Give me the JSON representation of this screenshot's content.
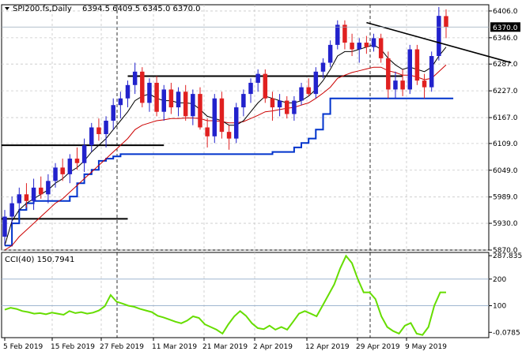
{
  "header": {
    "symbol": "SPI200.fs,Daily",
    "ohlc": "6394.5 6409.5 6345.0 6370.0",
    "arrow_icon": "triangle-down-icon"
  },
  "price_tag": "6370.0",
  "cci_header": "CCI(40) 150.7941",
  "chart_data": [
    {
      "type": "candlestick",
      "title": "SPI200.fs,Daily",
      "price_axis_ticks": [
        "6406.0",
        "6346.0",
        "6287.0",
        "6227.0",
        "6167.0",
        "6109.0",
        "6049.0",
        "5989.0",
        "5930.0",
        "5870.0"
      ],
      "date_axis_ticks": [
        "5 Feb 2019",
        "15 Feb 2019",
        "27 Feb 2019",
        "11 Mar 2019",
        "21 Mar 2019",
        "2 Apr 2019",
        "12 Apr 2019",
        "29 Apr 2019",
        "9 May 2019"
      ],
      "ylim": [
        5870,
        6420
      ],
      "grid": true,
      "last_price": 6370.0,
      "colors": {
        "up": "#2222cc",
        "down": "#e02020",
        "ema_fast": "#000000",
        "ema_slow": "#cc0000",
        "support": "#0033cc"
      },
      "candles": [
        {
          "o": 5900,
          "h": 5960,
          "l": 5880,
          "c": 5945
        },
        {
          "o": 5945,
          "h": 5990,
          "l": 5925,
          "c": 5975
        },
        {
          "o": 5975,
          "h": 6010,
          "l": 5955,
          "c": 5995
        },
        {
          "o": 5995,
          "h": 6020,
          "l": 5965,
          "c": 5980
        },
        {
          "o": 5980,
          "h": 6030,
          "l": 5960,
          "c": 6010
        },
        {
          "o": 6010,
          "h": 6035,
          "l": 5985,
          "c": 5995
        },
        {
          "o": 5995,
          "h": 6040,
          "l": 5975,
          "c": 6025
        },
        {
          "o": 6025,
          "h": 6065,
          "l": 6010,
          "c": 6055
        },
        {
          "o": 6055,
          "h": 6075,
          "l": 6025,
          "c": 6040
        },
        {
          "o": 6040,
          "h": 6085,
          "l": 6020,
          "c": 6075
        },
        {
          "o": 6075,
          "h": 6100,
          "l": 6050,
          "c": 6065
        },
        {
          "o": 6065,
          "h": 6120,
          "l": 6045,
          "c": 6105
        },
        {
          "o": 6105,
          "h": 6155,
          "l": 6090,
          "c": 6145
        },
        {
          "o": 6145,
          "h": 6165,
          "l": 6115,
          "c": 6130
        },
        {
          "o": 6130,
          "h": 6170,
          "l": 6100,
          "c": 6160
        },
        {
          "o": 6160,
          "h": 6210,
          "l": 6140,
          "c": 6195
        },
        {
          "o": 6195,
          "h": 6225,
          "l": 6165,
          "c": 6210
        },
        {
          "o": 6210,
          "h": 6250,
          "l": 6190,
          "c": 6240
        },
        {
          "o": 6240,
          "h": 6290,
          "l": 6220,
          "c": 6270
        },
        {
          "o": 6270,
          "h": 6280,
          "l": 6190,
          "c": 6200
        },
        {
          "o": 6200,
          "h": 6255,
          "l": 6180,
          "c": 6245
        },
        {
          "o": 6245,
          "h": 6260,
          "l": 6170,
          "c": 6180
        },
        {
          "o": 6180,
          "h": 6240,
          "l": 6160,
          "c": 6230
        },
        {
          "o": 6230,
          "h": 6245,
          "l": 6175,
          "c": 6190
        },
        {
          "o": 6190,
          "h": 6235,
          "l": 6170,
          "c": 6225
        },
        {
          "o": 6225,
          "h": 6240,
          "l": 6160,
          "c": 6170
        },
        {
          "o": 6170,
          "h": 6230,
          "l": 6150,
          "c": 6220
        },
        {
          "o": 6220,
          "h": 6235,
          "l": 6140,
          "c": 6145
        },
        {
          "o": 6145,
          "h": 6165,
          "l": 6100,
          "c": 6125
        },
        {
          "o": 6125,
          "h": 6220,
          "l": 6110,
          "c": 6210
        },
        {
          "o": 6210,
          "h": 6225,
          "l": 6120,
          "c": 6135
        },
        {
          "o": 6135,
          "h": 6150,
          "l": 6095,
          "c": 6120
        },
        {
          "o": 6120,
          "h": 6200,
          "l": 6110,
          "c": 6190
        },
        {
          "o": 6190,
          "h": 6230,
          "l": 6170,
          "c": 6220
        },
        {
          "o": 6220,
          "h": 6255,
          "l": 6200,
          "c": 6245
        },
        {
          "o": 6245,
          "h": 6275,
          "l": 6225,
          "c": 6265
        },
        {
          "o": 6265,
          "h": 6275,
          "l": 6200,
          "c": 6210
        },
        {
          "o": 6210,
          "h": 6225,
          "l": 6160,
          "c": 6190
        },
        {
          "o": 6190,
          "h": 6220,
          "l": 6170,
          "c": 6205
        },
        {
          "o": 6205,
          "h": 6215,
          "l": 6165,
          "c": 6175
        },
        {
          "o": 6175,
          "h": 6215,
          "l": 6160,
          "c": 6205
        },
        {
          "o": 6205,
          "h": 6245,
          "l": 6195,
          "c": 6235
        },
        {
          "o": 6235,
          "h": 6255,
          "l": 6215,
          "c": 6220
        },
        {
          "o": 6220,
          "h": 6280,
          "l": 6210,
          "c": 6270
        },
        {
          "o": 6270,
          "h": 6300,
          "l": 6255,
          "c": 6290
        },
        {
          "o": 6290,
          "h": 6340,
          "l": 6280,
          "c": 6330
        },
        {
          "o": 6330,
          "h": 6385,
          "l": 6320,
          "c": 6375
        },
        {
          "o": 6375,
          "h": 6385,
          "l": 6320,
          "c": 6335
        },
        {
          "o": 6335,
          "h": 6355,
          "l": 6305,
          "c": 6320
        },
        {
          "o": 6320,
          "h": 6345,
          "l": 6290,
          "c": 6335
        },
        {
          "o": 6335,
          "h": 6350,
          "l": 6310,
          "c": 6325
        },
        {
          "o": 6325,
          "h": 6355,
          "l": 6315,
          "c": 6345
        },
        {
          "o": 6345,
          "h": 6355,
          "l": 6290,
          "c": 6300
        },
        {
          "o": 6300,
          "h": 6315,
          "l": 6210,
          "c": 6230
        },
        {
          "o": 6230,
          "h": 6270,
          "l": 6210,
          "c": 6250
        },
        {
          "o": 6250,
          "h": 6275,
          "l": 6215,
          "c": 6230
        },
        {
          "o": 6230,
          "h": 6330,
          "l": 6220,
          "c": 6320
        },
        {
          "o": 6320,
          "h": 6330,
          "l": 6240,
          "c": 6250
        },
        {
          "o": 6250,
          "h": 6265,
          "l": 6210,
          "c": 6235
        },
        {
          "o": 6235,
          "h": 6315,
          "l": 6225,
          "c": 6305
        },
        {
          "o": 6305,
          "h": 6415,
          "l": 6295,
          "c": 6395
        },
        {
          "o": 6394.5,
          "h": 6409.5,
          "l": 6345,
          "c": 6370
        }
      ],
      "ema_fast": [
        5880,
        5935,
        5960,
        5975,
        5985,
        5995,
        6005,
        6020,
        6030,
        6045,
        6055,
        6070,
        6090,
        6105,
        6120,
        6140,
        6160,
        6180,
        6205,
        6215,
        6220,
        6210,
        6205,
        6205,
        6200,
        6200,
        6198,
        6185,
        6170,
        6165,
        6160,
        6150,
        6150,
        6160,
        6180,
        6200,
        6215,
        6210,
        6205,
        6200,
        6200,
        6205,
        6215,
        6230,
        6250,
        6275,
        6305,
        6315,
        6315,
        6320,
        6325,
        6330,
        6320,
        6300,
        6285,
        6275,
        6280,
        6275,
        6270,
        6280,
        6305,
        6325
      ],
      "ema_slow": [
        5870,
        5880,
        5900,
        5915,
        5930,
        5945,
        5960,
        5975,
        5985,
        6000,
        6015,
        6030,
        6045,
        6060,
        6075,
        6090,
        6105,
        6120,
        6140,
        6150,
        6155,
        6160,
        6162,
        6165,
        6165,
        6166,
        6166,
        6165,
        6160,
        6160,
        6158,
        6155,
        6155,
        6158,
        6165,
        6172,
        6180,
        6182,
        6185,
        6188,
        6190,
        6195,
        6200,
        6210,
        6222,
        6235,
        6255,
        6262,
        6268,
        6272,
        6276,
        6280,
        6280,
        6272,
        6268,
        6262,
        6262,
        6258,
        6252,
        6255,
        6270,
        6285
      ],
      "support_steps": [
        5880,
        5930,
        5960,
        5975,
        5980,
        5980,
        5980,
        5980,
        5980,
        5990,
        6020,
        6040,
        6050,
        6070,
        6075,
        6080,
        6085,
        6085,
        6085,
        6085,
        6085,
        6085,
        6085,
        6085,
        6085,
        6085,
        6085,
        6085,
        6085,
        6085,
        6085,
        6085,
        6085,
        6085,
        6085,
        6085,
        6085,
        6090,
        6090,
        6090,
        6100,
        6110,
        6120,
        6140,
        6175,
        6210,
        6210,
        6210,
        6210,
        6210,
        6210,
        6210,
        6210,
        6210,
        6210,
        6210,
        6210,
        6210,
        6210,
        6210,
        6210,
        6210
      ],
      "horizontal_levels": [
        {
          "from": 0,
          "to": 22,
          "y": 6105
        },
        {
          "from": 0,
          "to": 17,
          "y": 5940
        },
        {
          "from": 17,
          "to": 55,
          "y": 6260
        }
      ],
      "trendline": {
        "from": 50,
        "y1": 6380,
        "to": 70,
        "y2": 6290
      }
    },
    {
      "type": "line",
      "title": "CCI(40) 150.7941",
      "value_axis_ticks": [
        "287.8357",
        "200",
        "100",
        "-0.0785"
      ],
      "ylim": [
        -20,
        300
      ],
      "reference_levels": [
        200,
        100
      ],
      "color": "#66dd00",
      "values": [
        85,
        92,
        88,
        80,
        76,
        70,
        72,
        68,
        74,
        70,
        66,
        80,
        72,
        76,
        70,
        74,
        82,
        98,
        140,
        115,
        108,
        100,
        96,
        88,
        82,
        76,
        62,
        56,
        48,
        40,
        34,
        44,
        60,
        54,
        30,
        20,
        10,
        -5,
        30,
        60,
        80,
        62,
        34,
        16,
        12,
        25,
        10,
        20,
        10,
        40,
        70,
        80,
        70,
        60,
        100,
        140,
        180,
        240,
        287,
        260,
        200,
        150,
        150,
        125,
        60,
        20,
        5,
        -5,
        25,
        35,
        -5,
        -10,
        20,
        100,
        150,
        150
      ]
    }
  ]
}
